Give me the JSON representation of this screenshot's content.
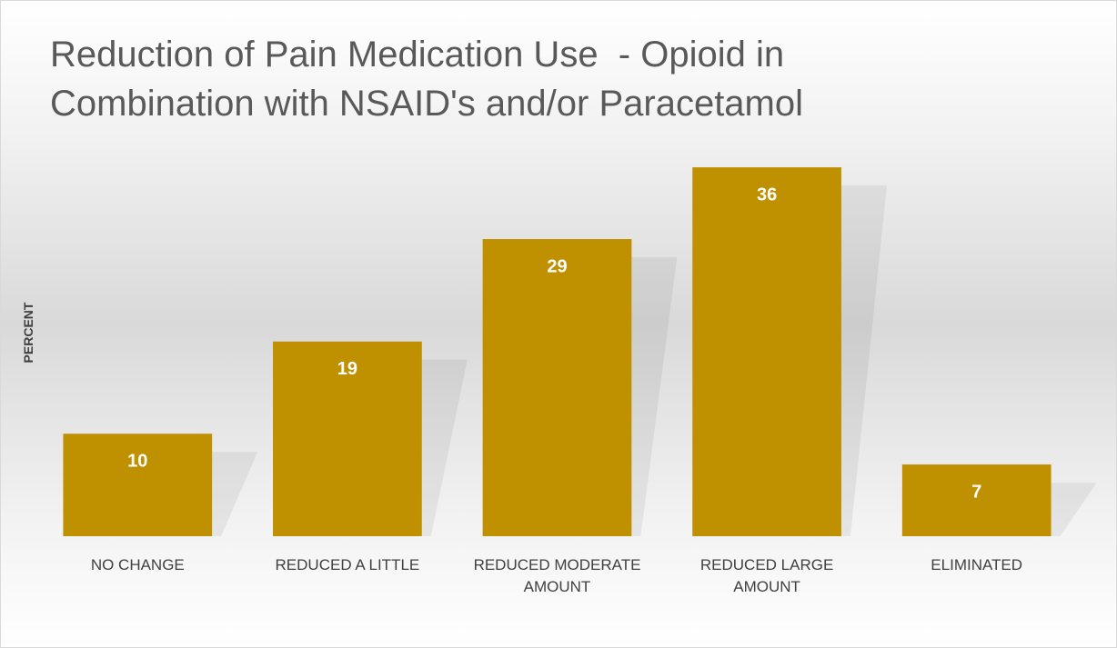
{
  "chart_data": {
    "type": "bar",
    "title": "Reduction of Pain Medication Use  - Opioid in Combination with NSAID's and/or Paracetamol",
    "y_label": "PERCENT",
    "categories": [
      "NO CHANGE",
      "REDUCED A LITTLE",
      "REDUCED MODERATE AMOUNT",
      "REDUCED LARGE AMOUNT",
      "ELIMINATED"
    ],
    "values": [
      10,
      19,
      29,
      36,
      7
    ],
    "color": "#bf9000",
    "ylim": [
      0,
      40
    ]
  }
}
